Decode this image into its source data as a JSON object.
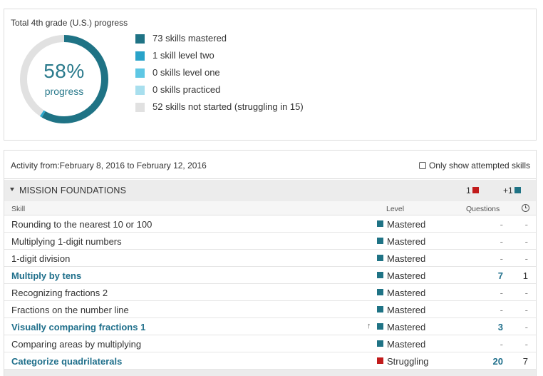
{
  "progress": {
    "title": "Total 4th grade (U.S.) progress",
    "percent_text": "58%",
    "percent_label": "progress",
    "donut_segments": [
      {
        "fraction": 0.584,
        "color": "#1f7385"
      },
      {
        "fraction": 0.008,
        "color": "#2aa8cf"
      },
      {
        "fraction": 0.408,
        "color": "#e1e1e1"
      }
    ],
    "legend": [
      {
        "text": "73 skills mastered",
        "color": "#1f7385"
      },
      {
        "text": "1  skill level two",
        "color": "#29a3c9"
      },
      {
        "text": "0 skills level one",
        "color": "#5ec7e4"
      },
      {
        "text": "0 skills practiced",
        "color": "#a8dfee"
      },
      {
        "text": "52 skills not started (struggling in 15)",
        "color": "#e1e1e1"
      }
    ]
  },
  "activity": {
    "label": "Activity from:February 8, 2016 to February 12, 2016",
    "attempted_label": "Only show attempted skills",
    "mission": {
      "title": "MISSION FOUNDATIONS",
      "down_count": "1",
      "down_color": "#c11b1b",
      "up_count": "+1",
      "up_color": "#1f7385"
    },
    "columns": {
      "skill": "Skill",
      "level": "Level",
      "questions": "Questions",
      "time_icon": "clock-icon"
    },
    "rows": [
      {
        "skill": "Rounding to the nearest 10 or 100",
        "link": false,
        "arrow": "",
        "level": "Mastered",
        "level_color": "#1f7385",
        "questions": "-",
        "time": "-"
      },
      {
        "skill": "Multiplying 1-digit numbers",
        "link": false,
        "arrow": "",
        "level": "Mastered",
        "level_color": "#1f7385",
        "questions": "-",
        "time": "-"
      },
      {
        "skill": "1-digit division",
        "link": false,
        "arrow": "",
        "level": "Mastered",
        "level_color": "#1f7385",
        "questions": "-",
        "time": "-"
      },
      {
        "skill": "Multiply by tens",
        "link": true,
        "arrow": "",
        "level": "Mastered",
        "level_color": "#1f7385",
        "questions": "7",
        "time": "1"
      },
      {
        "skill": "Recognizing fractions 2",
        "link": false,
        "arrow": "",
        "level": "Mastered",
        "level_color": "#1f7385",
        "questions": "-",
        "time": "-"
      },
      {
        "skill": "Fractions on the number line",
        "link": false,
        "arrow": "",
        "level": "Mastered",
        "level_color": "#1f7385",
        "questions": "-",
        "time": "-"
      },
      {
        "skill": "Visually comparing fractions 1",
        "link": true,
        "arrow": "↑",
        "level": "Mastered",
        "level_color": "#1f7385",
        "questions": "3",
        "time": "-"
      },
      {
        "skill": "Comparing areas by multiplying",
        "link": false,
        "arrow": "",
        "level": "Mastered",
        "level_color": "#1f7385",
        "questions": "-",
        "time": "-"
      },
      {
        "skill": "Categorize quadrilaterals",
        "link": true,
        "arrow": "",
        "level": "Struggling",
        "level_color": "#c11b1b",
        "questions": "20",
        "time": "7"
      }
    ]
  }
}
